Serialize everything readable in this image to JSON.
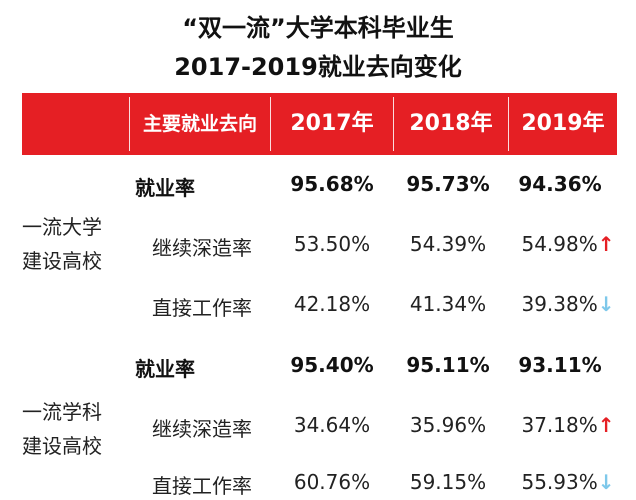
{
  "title_line1": "“双一流”大学本科毕业生",
  "title_line2": "2017-2019就业去向变化",
  "header": {
    "category": "主要就业去向",
    "years": [
      "2017年",
      "2018年",
      "2019年"
    ]
  },
  "groups": [
    {
      "name_line1": "一流大学",
      "name_line2": "建设高校",
      "rows": [
        {
          "label": "就业率",
          "v2017": "95.68%",
          "v2018": "95.73%",
          "v2019": "94.36%",
          "trend": ""
        },
        {
          "label": "继续深造率",
          "v2017": "53.50%",
          "v2018": "54.39%",
          "v2019": "54.98%",
          "trend": "↑"
        },
        {
          "label": "直接工作率",
          "v2017": "42.18%",
          "v2018": "41.34%",
          "v2019": "39.38%",
          "trend": "↓"
        }
      ]
    },
    {
      "name_line1": "一流学科",
      "name_line2": "建设高校",
      "rows": [
        {
          "label": "就业率",
          "v2017": "95.40%",
          "v2018": "95.11%",
          "v2019": "93.11%",
          "trend": ""
        },
        {
          "label": "继续深造率",
          "v2017": "34.64%",
          "v2018": "35.96%",
          "v2019": "37.18%",
          "trend": "↑"
        },
        {
          "label": "直接工作率",
          "v2017": "60.76%",
          "v2018": "59.15%",
          "v2019": "55.93%",
          "trend": "↓"
        }
      ]
    }
  ],
  "colors": {
    "header_bg": "#e51f24",
    "up_arrow": "#e51f24",
    "down_arrow": "#7ec8ea"
  }
}
